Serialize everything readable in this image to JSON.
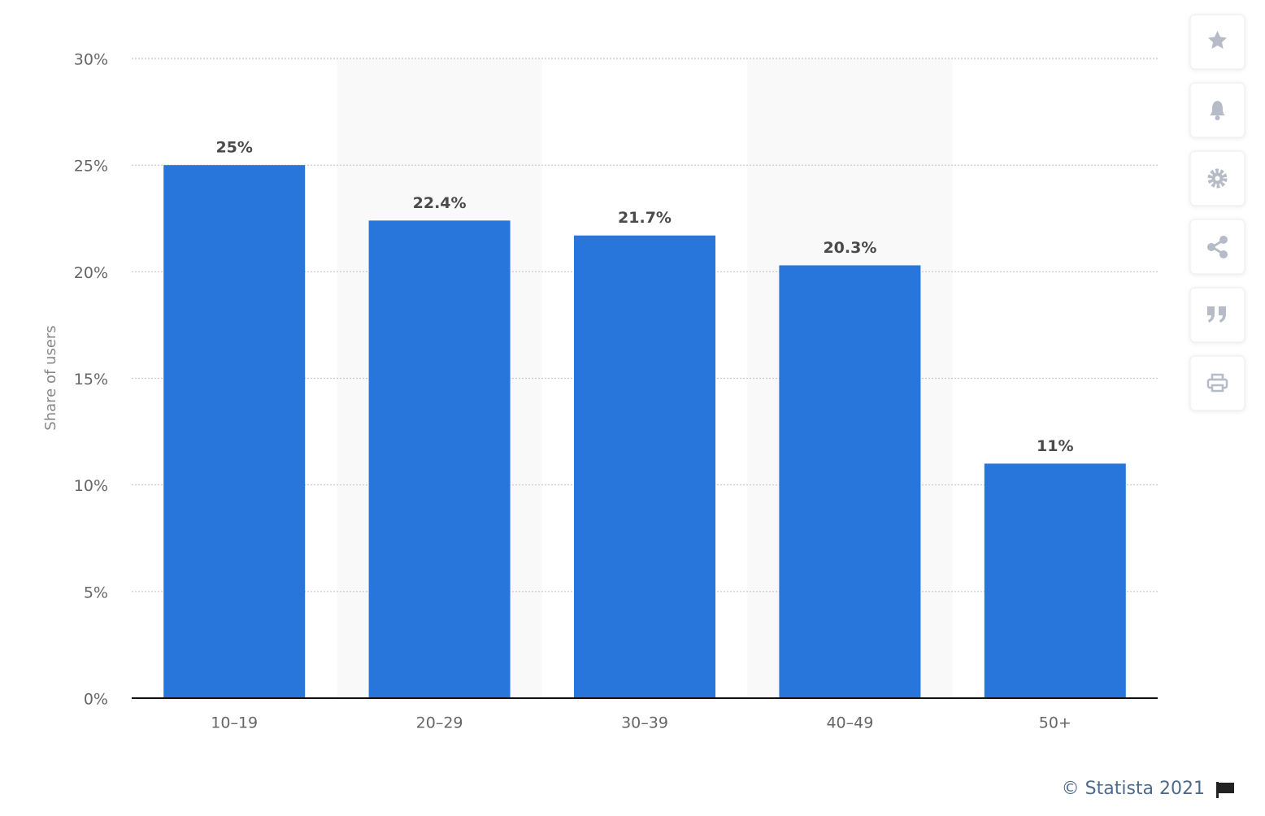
{
  "chart_data": {
    "type": "bar",
    "y_label": "Share of users",
    "categories": [
      "10–19",
      "20–29",
      "30–39",
      "40–49",
      "50+"
    ],
    "values": [
      25,
      22.4,
      21.7,
      20.3,
      11
    ],
    "value_labels": [
      "25%",
      "22.4%",
      "21.7%",
      "20.3%",
      "11%"
    ],
    "color": "#2875dc",
    "ylim": [
      0,
      30
    ],
    "yticks": [
      {
        "value": 0,
        "label": "0%"
      },
      {
        "value": 5,
        "label": "5%"
      },
      {
        "value": 10,
        "label": "10%"
      },
      {
        "value": 15,
        "label": "15%"
      },
      {
        "value": 20,
        "label": "20%"
      },
      {
        "value": 25,
        "label": "25%"
      },
      {
        "value": 30,
        "label": "30%"
      }
    ],
    "grid": true,
    "credit": "© Statista 2021"
  }
}
